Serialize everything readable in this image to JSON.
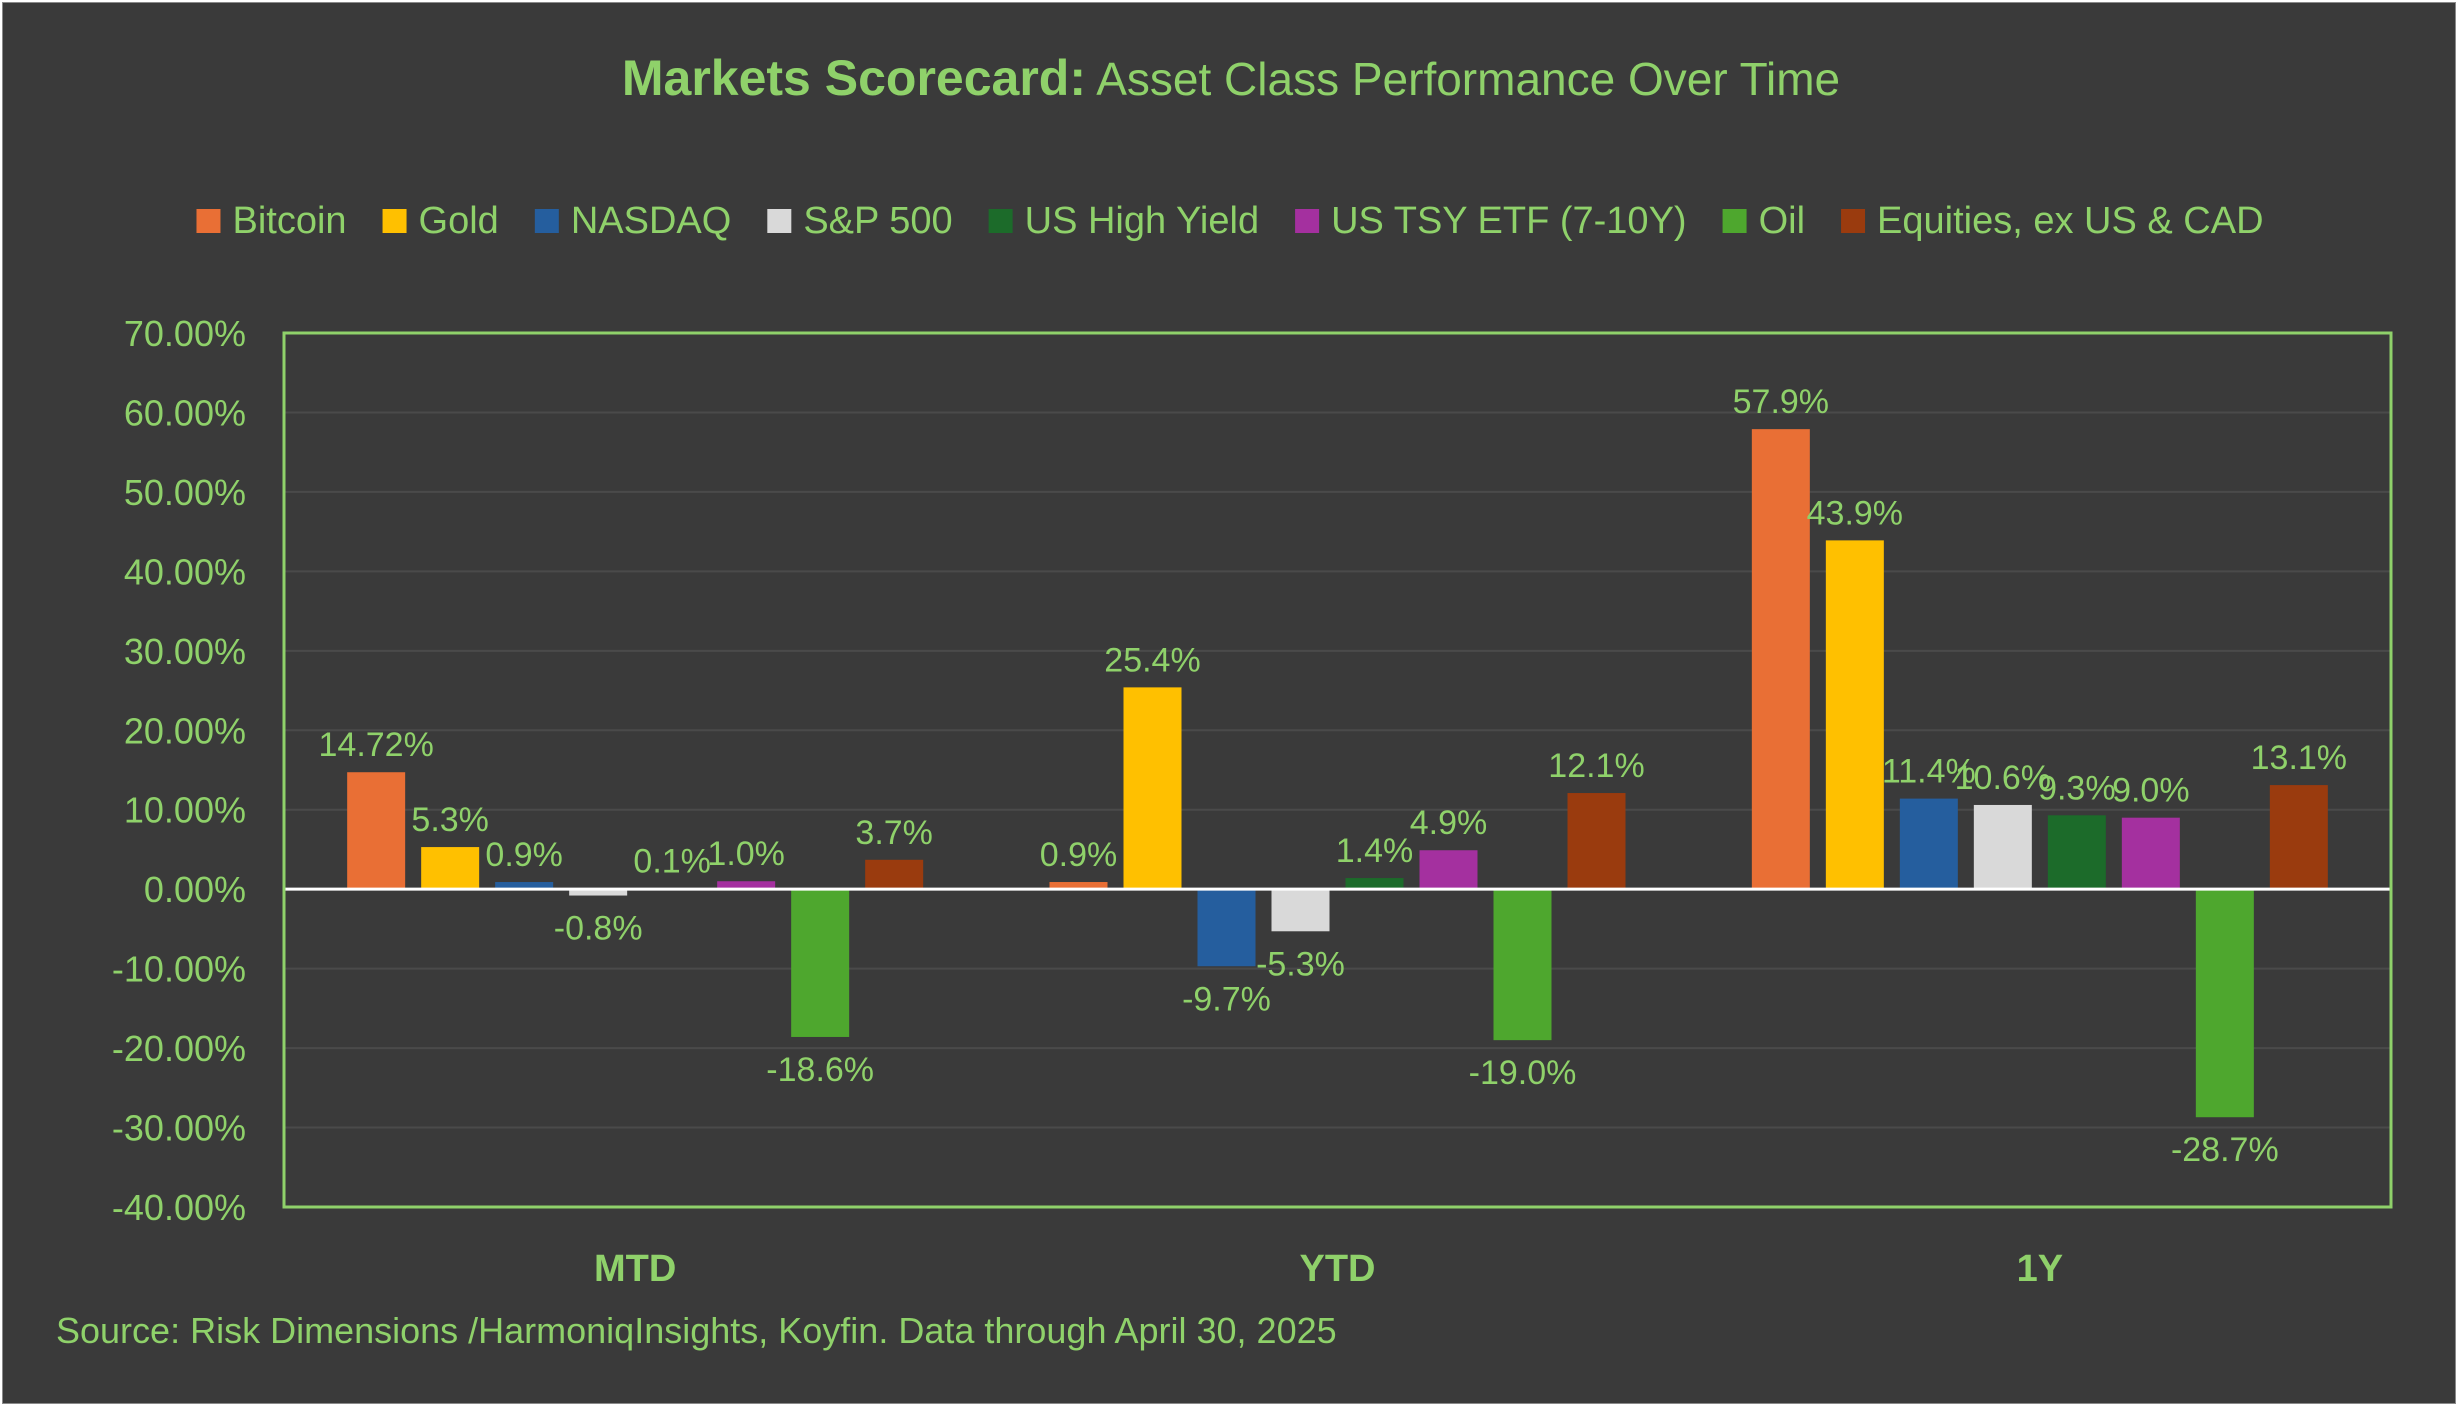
{
  "colors": {
    "text": "#8fd16a",
    "background": "#3a3a3a",
    "plot_border": "#8fd16a",
    "gridline": "#4a4a4a",
    "zero_line": "#ffffff"
  },
  "chart_data": {
    "type": "bar",
    "title_bold": "Markets Scorecard:",
    "title_rest": " Asset Class Performance Over Time",
    "xlabel": "",
    "ylabel": "",
    "ylim": [
      -40,
      70
    ],
    "y_ticks": [
      70,
      60,
      50,
      40,
      30,
      20,
      10,
      0,
      -10,
      -20,
      -30,
      -40
    ],
    "y_tick_labels": [
      "70.00%",
      "60.00%",
      "50.00%",
      "40.00%",
      "30.00%",
      "20.00%",
      "10.00%",
      "0.00%",
      "-10.00%",
      "-20.00%",
      "-30.00%",
      "-40.00%"
    ],
    "categories": [
      "MTD",
      "YTD",
      "1Y"
    ],
    "legend_position": "top",
    "series": [
      {
        "name": "Bitcoin",
        "color": "#e96f35",
        "values": [
          14.72,
          0.9,
          57.9
        ],
        "labels": [
          "14.72%",
          "0.9%",
          "57.9%"
        ]
      },
      {
        "name": "Gold",
        "color": "#ffc000",
        "values": [
          5.3,
          25.4,
          43.9
        ],
        "labels": [
          "5.3%",
          "25.4%",
          "43.9%"
        ]
      },
      {
        "name": "NASDAQ",
        "color": "#255e9e",
        "values": [
          0.9,
          -9.7,
          11.4
        ],
        "labels": [
          "0.9%",
          "-9.7%",
          "11.4%"
        ]
      },
      {
        "name": "S&P 500",
        "color": "#d9d9d9",
        "values": [
          -0.8,
          -5.3,
          10.6
        ],
        "labels": [
          "-0.8%",
          "-5.3%",
          "10.6%"
        ]
      },
      {
        "name": "US High Yield",
        "color": "#1c6b2a",
        "values": [
          0.1,
          1.4,
          9.3
        ],
        "labels": [
          "0.1%",
          "1.4%",
          "9.3%"
        ]
      },
      {
        "name": "US TSY ETF (7-10Y)",
        "color": "#a4309f",
        "values": [
          1.0,
          4.9,
          9.0
        ],
        "labels": [
          "1.0%",
          "4.9%",
          "9.0%"
        ]
      },
      {
        "name": "Oil",
        "color": "#4ea72e",
        "values": [
          -18.6,
          -19.0,
          -28.7
        ],
        "labels": [
          "-18.6%",
          "-19.0%",
          "-28.7%"
        ]
      },
      {
        "name": "Equities, ex US & CAD",
        "color": "#9a3b0e",
        "values": [
          3.7,
          12.1,
          13.1
        ],
        "labels": [
          "3.7%",
          "12.1%",
          "13.1%"
        ]
      }
    ],
    "source": "Source: Risk Dimensions /HarmoniqInsights, Koyfin. Data through April 30, 2025"
  }
}
